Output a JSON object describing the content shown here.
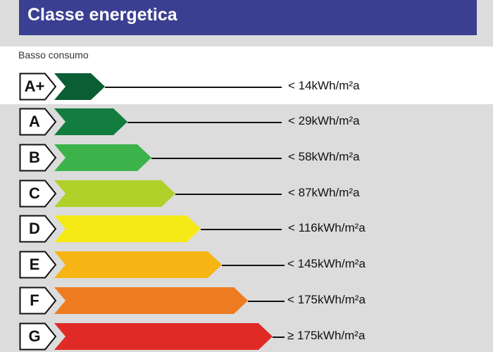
{
  "title": "Classe energetica",
  "subtitle": "Basso consumo",
  "classes": [
    {
      "label": "A+",
      "value": "< 14kWh/m²a",
      "color": "#0b5e34"
    },
    {
      "label": "A",
      "value": "< 29kWh/m²a",
      "color": "#127d3e"
    },
    {
      "label": "B",
      "value": "< 58kWh/m²a",
      "color": "#3bb34a"
    },
    {
      "label": "C",
      "value": "< 87kWh/m²a",
      "color": "#b0d02a"
    },
    {
      "label": "D",
      "value": "< 116kWh/m²a",
      "color": "#f5ea16"
    },
    {
      "label": "E",
      "value": "< 145kWh/m²a",
      "color": "#f6b415"
    },
    {
      "label": "F",
      "value": "< 175kWh/m²a",
      "color": "#ee7b1f"
    },
    {
      "label": "G",
      "value": "≥ 175kWh/m²a",
      "color": "#e02a26"
    }
  ]
}
